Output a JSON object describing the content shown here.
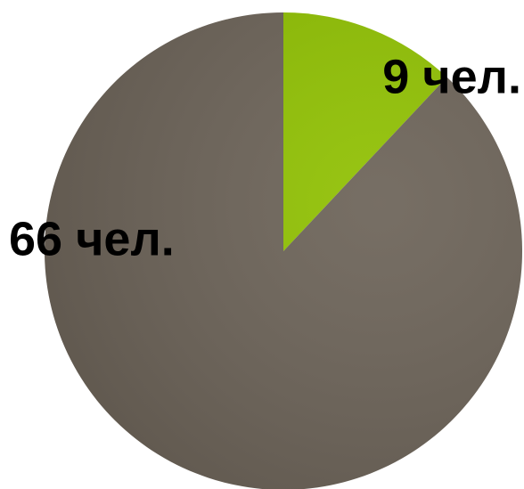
{
  "chart_data": {
    "type": "pie",
    "values": [
      9,
      66
    ],
    "value_labels": [
      "9 чел.",
      "66 чел."
    ],
    "colors": [
      "#8fc000",
      "#6b6257"
    ]
  }
}
